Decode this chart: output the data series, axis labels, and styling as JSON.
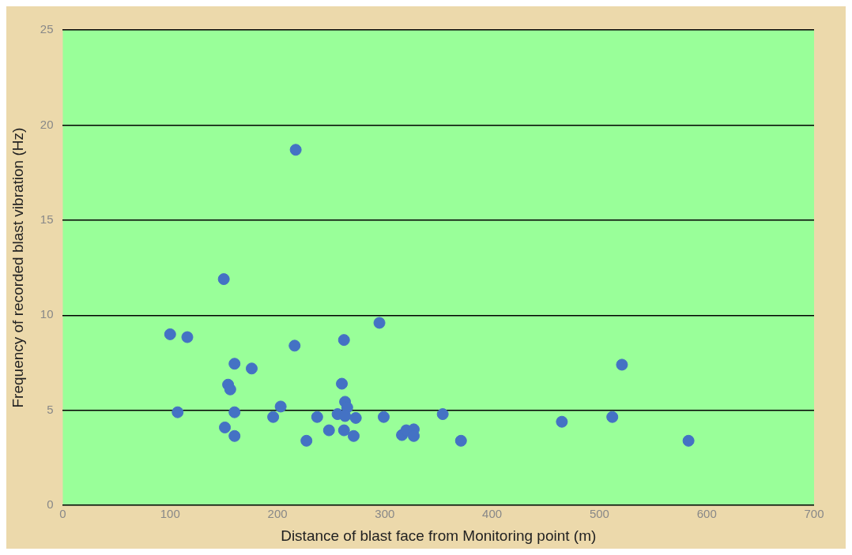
{
  "chart_data": {
    "type": "scatter",
    "xlabel": "Distance of blast face from Monitoring point (m)",
    "ylabel": "Frequency of recorded blast vibration (Hz)",
    "x": [
      100,
      116,
      107,
      150,
      160,
      154,
      156,
      160,
      151,
      160,
      216,
      262,
      295,
      176,
      260,
      203,
      196,
      237,
      263,
      265,
      256,
      263,
      273,
      299,
      354,
      248,
      262,
      271,
      227,
      316,
      320,
      327,
      327,
      371,
      217,
      465,
      512,
      521,
      583
    ],
    "values": [
      9.0,
      8.85,
      4.9,
      11.9,
      7.45,
      6.35,
      6.1,
      4.9,
      4.1,
      3.65,
      8.4,
      8.7,
      9.6,
      7.2,
      6.4,
      5.2,
      4.65,
      4.65,
      5.45,
      5.15,
      4.8,
      4.7,
      4.6,
      4.65,
      4.8,
      3.95,
      3.95,
      3.65,
      3.4,
      3.7,
      3.95,
      4.0,
      3.65,
      3.4,
      18.7,
      4.4,
      4.65,
      7.4,
      3.4
    ],
    "color": "#4472c4",
    "marker": "circle",
    "xlim": [
      0,
      700
    ],
    "xticks": [
      0,
      100,
      200,
      300,
      400,
      500,
      600,
      700
    ],
    "ylim": [
      0,
      25
    ],
    "yticks": [
      0,
      5,
      10,
      15,
      20,
      25
    ],
    "grid": "y"
  }
}
